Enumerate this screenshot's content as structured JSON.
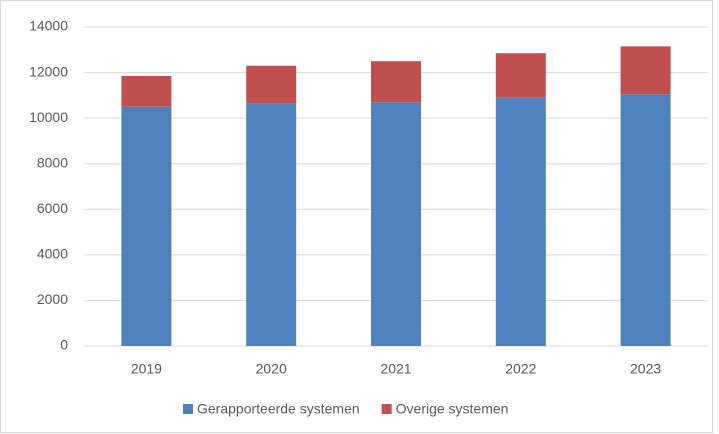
{
  "chart_data": {
    "type": "stacked_bar",
    "categories": [
      "2019",
      "2020",
      "2021",
      "2022",
      "2023"
    ],
    "series": [
      {
        "name": "Gerapporteerde systemen",
        "color": "#4f81bd",
        "values": [
          10500,
          10650,
          10700,
          10900,
          11050
        ]
      },
      {
        "name": "Overige systemen",
        "color": "#c0504d",
        "values": [
          1350,
          1650,
          1800,
          1950,
          2100
        ]
      }
    ],
    "ylim": [
      0,
      14000
    ],
    "yticks": [
      0,
      2000,
      4000,
      6000,
      8000,
      10000,
      12000,
      14000
    ],
    "grid": true,
    "legend": "bottom"
  }
}
